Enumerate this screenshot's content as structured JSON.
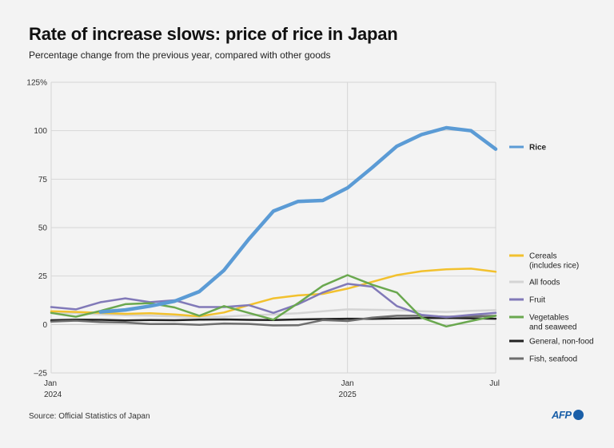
{
  "title": "Rate of increase slows: price of rice in Japan",
  "subtitle": "Percentage change from the previous year, compared with other goods",
  "source": "Source: Official Statistics of Japan",
  "logo_text": "AFP",
  "colors": {
    "background": "#f3f3f3",
    "grid": "#d6d6d6",
    "axis_text": "#333333",
    "logo": "#1a5fa8"
  },
  "chart_data": {
    "type": "line",
    "title": "Rate of increase slows: price of rice in Japan",
    "subtitle": "Percentage change from the previous year, compared with other goods",
    "ylabel": "",
    "xlabel": "",
    "ylim": [
      -25,
      125
    ],
    "y_unit": "%",
    "y_ticks": [
      -25,
      0,
      25,
      50,
      75,
      100,
      125
    ],
    "y_tick_labels": [
      "–25",
      "0",
      "25",
      "50",
      "75",
      "100",
      "125%"
    ],
    "x": [
      "2024-01",
      "2024-02",
      "2024-03",
      "2024-04",
      "2024-05",
      "2024-06",
      "2024-07",
      "2024-08",
      "2024-09",
      "2024-10",
      "2024-11",
      "2024-12",
      "2025-01",
      "2025-02",
      "2025-03",
      "2025-04",
      "2025-05",
      "2025-06",
      "2025-07"
    ],
    "x_tick_labels": [
      {
        "month": "2024-01",
        "label": "Jan",
        "year": "2024"
      },
      {
        "month": "2025-01",
        "label": "Jan",
        "year": "2025"
      },
      {
        "month": "2025-07",
        "label": "Jul",
        "year": ""
      }
    ],
    "grid": "vertical line at Jan 2025; horizontal gridlines",
    "legend_position": "right",
    "series": [
      {
        "name": "General, non-food",
        "color": "#222222",
        "width": 2.5,
        "values": [
          2.2,
          2.5,
          2.4,
          2.1,
          2.3,
          2.2,
          2.5,
          2.6,
          2.4,
          2.3,
          2.6,
          2.8,
          3.0,
          2.9,
          3.1,
          3.3,
          3.4,
          3.2,
          3.0
        ]
      },
      {
        "name": "Fish, seafood",
        "color": "#6e6e6e",
        "width": 2.5,
        "values": [
          1.5,
          2.0,
          1.2,
          1.0,
          0.2,
          0.3,
          -0.2,
          0.5,
          0.3,
          -0.5,
          -0.4,
          2.3,
          1.8,
          3.5,
          4.5,
          4.5,
          4.0,
          4.2,
          4.5
        ]
      },
      {
        "name": "All foods",
        "color": "#d4d4d4",
        "width": 2.5,
        "values": [
          6.2,
          5.8,
          5.2,
          4.8,
          4.6,
          4.2,
          3.8,
          4.0,
          4.8,
          5.2,
          5.8,
          6.8,
          7.8,
          7.6,
          7.4,
          6.8,
          6.5,
          7.0,
          7.4
        ]
      },
      {
        "name": "Cereals\n(includes rice)",
        "color": "#f2c12e",
        "width": 2.5,
        "values": [
          6.8,
          6.5,
          6.0,
          5.5,
          5.8,
          5.2,
          4.2,
          6.2,
          10.0,
          13.5,
          15.0,
          15.8,
          18.5,
          22.0,
          25.5,
          27.5,
          28.5,
          28.8,
          27.2
        ]
      },
      {
        "name": "Fruit",
        "color": "#8179b8",
        "width": 2.5,
        "values": [
          9.0,
          7.8,
          11.5,
          13.5,
          11.5,
          12.5,
          9.0,
          9.0,
          10.0,
          6.0,
          10.5,
          16.5,
          21.0,
          19.5,
          9.5,
          5.0,
          3.8,
          5.0,
          6.0
        ]
      },
      {
        "name": "Vegetables\nand seaweed",
        "color": "#6aa84f",
        "width": 2.5,
        "values": [
          6.0,
          4.0,
          7.0,
          10.5,
          11.0,
          8.8,
          4.5,
          9.5,
          6.0,
          2.5,
          11.0,
          20.0,
          25.5,
          20.5,
          16.5,
          3.5,
          -1.0,
          1.8,
          4.5
        ]
      },
      {
        "name": "Rice",
        "color": "#5b9bd5",
        "width": 4.5,
        "values": [
          null,
          null,
          6.5,
          7.5,
          9.5,
          12.0,
          17.0,
          28.0,
          44.0,
          58.5,
          63.5,
          64.0,
          70.5,
          81.0,
          92.0,
          98.0,
          101.5,
          100.0,
          90.5
        ]
      }
    ]
  }
}
